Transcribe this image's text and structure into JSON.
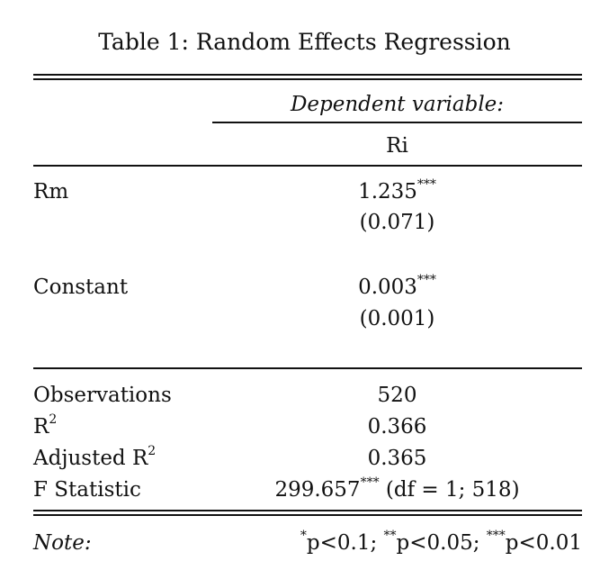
{
  "table": {
    "title": "Table 1: Random Effects Regression",
    "dep_var_header": "Dependent variable:",
    "dep_var_name": "Ri",
    "rows": [
      {
        "label": "Rm",
        "coef": "1.235",
        "stars": "***",
        "se": "(0.071)"
      },
      {
        "label": "Constant",
        "coef": "0.003",
        "stars": "***",
        "se": "(0.001)"
      }
    ],
    "stats": {
      "observations_label": "Observations",
      "observations_value": "520",
      "r2_label": "R",
      "r2_sup": "2",
      "r2_value": "0.366",
      "adj_r2_label": "Adjusted R",
      "adj_r2_sup": "2",
      "adj_r2_value": "0.365",
      "f_label": "F Statistic",
      "f_value": "299.657",
      "f_stars": "***",
      "f_df": " (df = 1; 518)"
    },
    "note": {
      "label": "Note:",
      "s1": "*",
      "t1": "p<0.1; ",
      "s2": "**",
      "t2": "p<0.05; ",
      "s3": "***",
      "t3": "p<0.01"
    }
  }
}
